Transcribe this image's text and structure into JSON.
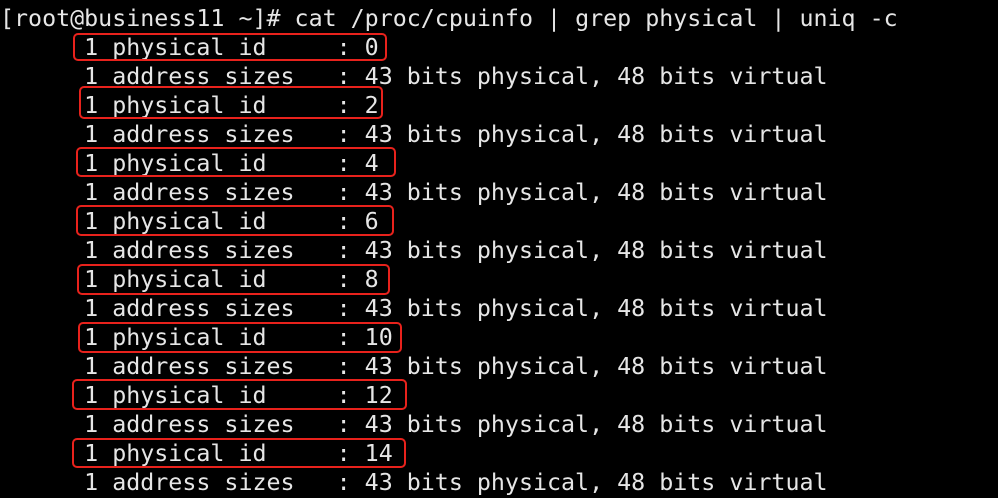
{
  "terminal": {
    "prompt": "[root@business11 ~]# ",
    "command": "cat /proc/cpuinfo | grep physical | uniq -c",
    "output": [
      "      1 physical id     : 0",
      "      1 address sizes   : 43 bits physical, 48 bits virtual",
      "      1 physical id     : 2",
      "      1 address sizes   : 43 bits physical, 48 bits virtual",
      "      1 physical id     : 4",
      "      1 address sizes   : 43 bits physical, 48 bits virtual",
      "      1 physical id     : 6",
      "      1 address sizes   : 43 bits physical, 48 bits virtual",
      "      1 physical id     : 8",
      "      1 address sizes   : 43 bits physical, 48 bits virtual",
      "      1 physical id     : 10",
      "      1 address sizes   : 43 bits physical, 48 bits virtual",
      "      1 physical id     : 12",
      "      1 address sizes   : 43 bits physical, 48 bits virtual",
      "      1 physical id     : 14",
      "      1 address sizes   : 43 bits physical, 48 bits virtual"
    ]
  },
  "colors": {
    "background": "#000000",
    "text": "#e6e6e6",
    "highlight": "#e8221c"
  }
}
